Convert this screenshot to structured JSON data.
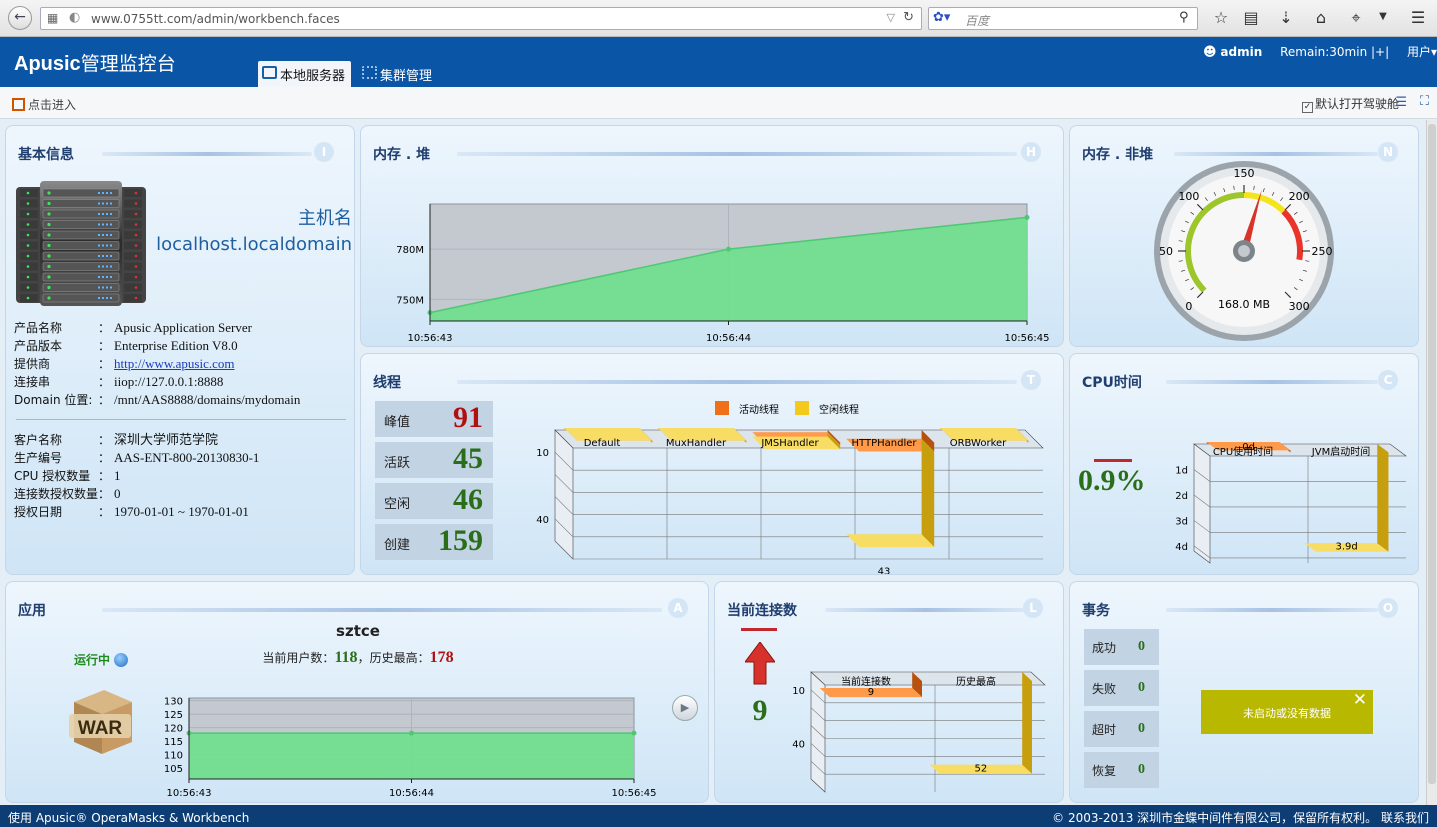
{
  "browser": {
    "url": "www.0755tt.com/admin/workbench.faces",
    "search_placeholder": "百度"
  },
  "header": {
    "brand_bold": "Apusic",
    "brand_text": "管理监控台",
    "tabs": [
      {
        "label": "本地服务器",
        "active": true
      },
      {
        "label": "集群管理",
        "active": false
      }
    ],
    "user": "admin",
    "remain": "Remain:30min |+|",
    "user_menu": "用户▾"
  },
  "subbar": {
    "enter_label": "点击进入",
    "drive_label": "默认打开驾驶舱"
  },
  "basic": {
    "title": "基本信息",
    "letter": "I",
    "host_label": "主机名",
    "host_value": "localhost.localdomain",
    "rows1": [
      {
        "k": "产品名称",
        "v": "Apusic Application Server"
      },
      {
        "k": "产品版本",
        "v": "Enterprise Edition V8.0"
      },
      {
        "k": "提供商",
        "v": "http://www.apusic.com",
        "link": true
      },
      {
        "k": "连接串",
        "v": "iiop://127.0.0.1:8888"
      },
      {
        "k": "Domain 位置:",
        "v": "/mnt/AAS8888/domains/mydomain"
      }
    ],
    "rows2": [
      {
        "k": "客户名称",
        "v": "深圳大学师范学院"
      },
      {
        "k": "生产编号",
        "v": "AAS-ENT-800-20130830-1"
      },
      {
        "k": "CPU 授权数量",
        "v": "1"
      },
      {
        "k": "连接数授权数量",
        "v": "0"
      },
      {
        "k": "授权日期",
        "v": "1970-01-01 ~ 1970-01-01"
      }
    ]
  },
  "heap": {
    "title": "内存 . 堆",
    "letter": "H"
  },
  "nonheap": {
    "title": "内存 . 非堆",
    "letter": "N",
    "readout": "168.0 MB",
    "ticks": [
      "0",
      "50",
      "100",
      "150",
      "200",
      "250",
      "300"
    ],
    "value": 168
  },
  "threads": {
    "title": "线程",
    "letter": "T",
    "stats": [
      {
        "label": "峰值",
        "value": "91",
        "color": "#b01010"
      },
      {
        "label": "活跃",
        "value": "45",
        "color": "#2a6e1a"
      },
      {
        "label": "空闲",
        "value": "46",
        "color": "#2a6e1a"
      },
      {
        "label": "创建",
        "value": "159",
        "color": "#2a6e1a"
      }
    ],
    "legend": [
      "活动线程",
      "空闲线程"
    ]
  },
  "cpu": {
    "title": "CPU时间",
    "letter": "C",
    "percent": "0.9%"
  },
  "app": {
    "title": "应用",
    "letter": "A",
    "name": "sztce",
    "status": "运行中",
    "users_prefix": "当前用户数：",
    "users_current": "118",
    "users_mid": "，历史最高：",
    "users_max": "178",
    "war_label": "WAR"
  },
  "conn": {
    "title": "当前连接数",
    "letter": "L",
    "value": "9"
  },
  "tx": {
    "title": "事务",
    "letter": "O",
    "stats": [
      {
        "label": "成功",
        "value": "0"
      },
      {
        "label": "失败",
        "value": "0"
      },
      {
        "label": "超时",
        "value": "0"
      },
      {
        "label": "恢复",
        "value": "0"
      }
    ],
    "nodata": "未启动或没有数据"
  },
  "chart_data": [
    {
      "id": "heap",
      "type": "area",
      "x": [
        "10:56:43",
        "10:56:44",
        "10:56:45"
      ],
      "y_ticks": [
        "750M",
        "780M"
      ],
      "values": [
        742,
        780,
        799
      ],
      "unit": "M",
      "ylim": [
        737,
        807
      ],
      "color": "#6ee08c"
    },
    {
      "id": "threads",
      "type": "bar",
      "categories": [
        "Default",
        "MuxHandler",
        "JMSHandler",
        "HTTPHandler",
        "ORBWorker"
      ],
      "series": [
        {
          "name": "活动线程",
          "values": [
            0,
            0,
            1,
            4,
            0
          ],
          "color": "#f0701a"
        },
        {
          "name": "空闲线程",
          "values": [
            0,
            0,
            2,
            43,
            0
          ],
          "color": "#f3c91c"
        }
      ],
      "data_labels": [
        "",
        "",
        "",
        "43",
        ""
      ],
      "y_ticks": [
        "10",
        "40"
      ],
      "ylim": [
        0,
        50
      ]
    },
    {
      "id": "cpu",
      "type": "bar",
      "categories": [
        "CPU使用时间",
        "JVM启动时间"
      ],
      "values": [
        0,
        3.9
      ],
      "data_labels": [
        "0d",
        "3.9d"
      ],
      "y_ticks": [
        "1d",
        "2d",
        "3d",
        "4d"
      ],
      "ylim": [
        0,
        4.2
      ]
    },
    {
      "id": "app_users",
      "type": "area",
      "x": [
        "10:56:43",
        "10:56:44",
        "10:56:45"
      ],
      "values": [
        118,
        118,
        118
      ],
      "y_ticks": [
        "105",
        "110",
        "115",
        "120",
        "125",
        "130"
      ],
      "ylim": [
        101,
        131
      ],
      "color": "#6ee08c"
    },
    {
      "id": "connections",
      "type": "bar",
      "categories": [
        "当前连接数",
        "历史最高"
      ],
      "values": [
        9,
        52
      ],
      "data_labels": [
        "9",
        "52"
      ],
      "y_ticks": [
        "10",
        "40"
      ],
      "ylim": [
        0,
        60
      ]
    }
  ]
}
